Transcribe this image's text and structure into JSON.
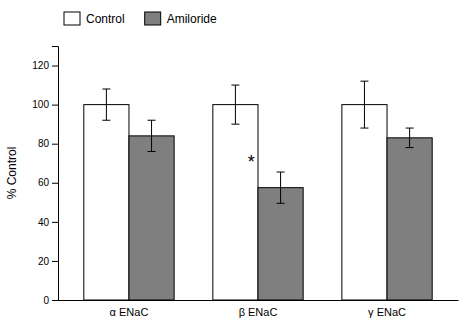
{
  "chart_data": {
    "type": "bar",
    "categories": [
      "α ENaC",
      "β ENaC",
      "γ ENaC"
    ],
    "series": [
      {
        "name": "Control",
        "color": "#ffffff",
        "values": [
          100,
          100,
          100
        ],
        "errors": [
          8,
          10,
          12
        ]
      },
      {
        "name": "Amiloride",
        "color": "#7f7f7f",
        "values": [
          84,
          57.5,
          83
        ],
        "errors": [
          8,
          8,
          5
        ]
      }
    ],
    "y_label": "% Control",
    "ylim": [
      0,
      130
    ],
    "yticks": [
      0,
      20,
      40,
      60,
      80,
      100,
      120
    ],
    "legend": "upper left",
    "annotations": [
      {
        "text": "*",
        "category": "β ENaC",
        "series": "Amiloride"
      }
    ]
  }
}
